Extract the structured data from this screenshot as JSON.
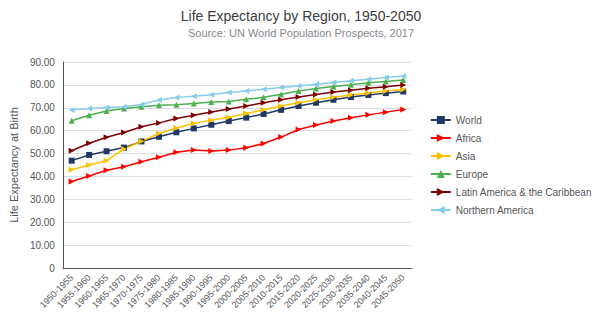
{
  "chart_data": {
    "type": "line",
    "title": "Life Expectancy by Region, 1950-2050",
    "subtitle": "Source: UN World Population Prospects, 2017",
    "ylabel": "Life Expectancy at Birth",
    "ylim": [
      0,
      90
    ],
    "yticks": [
      0,
      {
        "value": 10,
        "label": "10.00"
      },
      {
        "value": 20,
        "label": "20.00"
      },
      {
        "value": 30,
        "label": "30.00"
      },
      {
        "value": 40,
        "label": "40.00"
      },
      {
        "value": 50,
        "label": "50.00"
      },
      {
        "value": 60,
        "label": "60.00"
      },
      {
        "value": 70,
        "label": "70.00"
      },
      {
        "value": 80,
        "label": "80.00"
      },
      {
        "value": 90,
        "label": "90.00"
      }
    ],
    "grid": true,
    "legend": "right",
    "categories": [
      "1950-1955",
      "1955-1960",
      "1960-1965",
      "1965-1970",
      "1970-1975",
      "1975-1980",
      "1980-1985",
      "1985-1990",
      "1990-1995",
      "1995-2000",
      "2000-2005",
      "2005-2010",
      "2010-2015",
      "2015-2020",
      "2020-2025",
      "2025-2030",
      "2030-2035",
      "2035-2040",
      "2040-2045",
      "2045-2050"
    ],
    "series": [
      {
        "name": "World",
        "color": "#1F3864",
        "marker": "square",
        "values": [
          46.9,
          49.4,
          51.0,
          52.6,
          55.3,
          57.3,
          59.3,
          61.0,
          62.6,
          64.2,
          65.7,
          67.3,
          69.1,
          70.8,
          72.2,
          73.5,
          74.7,
          75.6,
          76.4,
          77.1
        ]
      },
      {
        "name": "Africa",
        "color": "#FF0000",
        "marker": "triangle-right",
        "values": [
          37.8,
          40.2,
          42.7,
          44.2,
          46.4,
          48.4,
          50.6,
          51.6,
          51.1,
          51.5,
          52.5,
          54.4,
          57.2,
          60.5,
          62.5,
          64.2,
          65.6,
          66.9,
          68.1,
          69.2
        ]
      },
      {
        "name": "Asia",
        "color": "#FFC000",
        "marker": "triangle-right",
        "values": [
          42.9,
          45.0,
          46.9,
          52.0,
          55.4,
          58.8,
          61.2,
          63.1,
          64.6,
          65.9,
          67.5,
          69.1,
          70.8,
          72.2,
          73.5,
          74.6,
          75.6,
          76.5,
          77.3,
          78.0
        ]
      },
      {
        "name": "Europe",
        "color": "#4CAF50",
        "marker": "triangle-up",
        "values": [
          64.3,
          66.7,
          68.6,
          69.7,
          70.5,
          71.1,
          71.3,
          71.9,
          72.5,
          72.7,
          73.7,
          74.6,
          75.9,
          77.3,
          78.4,
          79.3,
          80.1,
          80.9,
          81.5,
          82.1
        ]
      },
      {
        "name": "Latin America & the Caribbean",
        "color": "#7F0000",
        "marker": "triangle-right",
        "values": [
          51.2,
          54.5,
          57.1,
          59.2,
          61.7,
          63.4,
          65.3,
          66.7,
          68.2,
          69.5,
          70.8,
          72.2,
          73.5,
          74.7,
          75.8,
          76.9,
          77.7,
          78.5,
          79.2,
          79.9
        ]
      },
      {
        "name": "Northern America",
        "color": "#87CEEB",
        "marker": "triangle-left",
        "values": [
          69.0,
          69.7,
          70.1,
          70.4,
          71.4,
          73.4,
          74.5,
          75.0,
          75.7,
          76.7,
          77.3,
          78.1,
          78.9,
          79.5,
          80.3,
          81.0,
          81.8,
          82.5,
          83.2,
          83.9
        ]
      }
    ]
  }
}
